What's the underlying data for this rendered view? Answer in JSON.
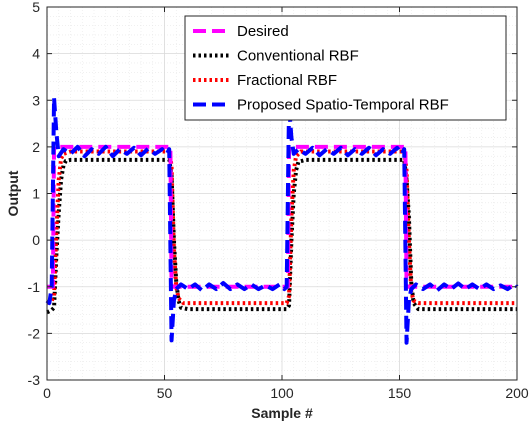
{
  "chart_data": {
    "type": "line",
    "xlabel": "Sample #",
    "ylabel": "Output",
    "xlim": [
      0,
      200
    ],
    "ylim": [
      -3,
      5
    ],
    "xticks": [
      0,
      50,
      100,
      150,
      200
    ],
    "yticks": [
      -3,
      -2,
      -1,
      0,
      1,
      2,
      3,
      4,
      5
    ],
    "grid": "on (major and minor)",
    "legend_position": "top-right",
    "series": [
      {
        "name": "Desired",
        "color": "#ff00ff",
        "style": "dashed",
        "points": [
          [
            0,
            -1.0
          ],
          [
            2.5,
            -1.0
          ],
          [
            3,
            2.0
          ],
          [
            52.5,
            2.0
          ],
          [
            53,
            -1.0
          ],
          [
            102.5,
            -1.0
          ],
          [
            103,
            2.0
          ],
          [
            152.5,
            2.0
          ],
          [
            153,
            -1.0
          ],
          [
            200,
            -1.0
          ]
        ]
      },
      {
        "name": "Conventional RBF",
        "color": "#000000",
        "style": "dotted",
        "points": [
          [
            0,
            -1.55
          ],
          [
            2,
            -1.5
          ],
          [
            3,
            -1.45
          ],
          [
            4,
            -0.3
          ],
          [
            5,
            0.6
          ],
          [
            6,
            1.3
          ],
          [
            7,
            1.6
          ],
          [
            8,
            1.7
          ],
          [
            10,
            1.72
          ],
          [
            52,
            1.72
          ],
          [
            53,
            1.4
          ],
          [
            54,
            0.0
          ],
          [
            55,
            -0.9
          ],
          [
            56,
            -1.3
          ],
          [
            57,
            -1.45
          ],
          [
            60,
            -1.48
          ],
          [
            102,
            -1.48
          ],
          [
            103,
            -1.4
          ],
          [
            104,
            0.0
          ],
          [
            105,
            1.0
          ],
          [
            106,
            1.5
          ],
          [
            107,
            1.68
          ],
          [
            110,
            1.72
          ],
          [
            152,
            1.72
          ],
          [
            153,
            1.3
          ],
          [
            154,
            0.5
          ],
          [
            155,
            -0.9
          ],
          [
            156,
            -1.35
          ],
          [
            158,
            -1.48
          ],
          [
            200,
            -1.48
          ]
        ]
      },
      {
        "name": "Fractional RBF",
        "color": "#ff0000",
        "style": "dotted",
        "points": [
          [
            0,
            -1.35
          ],
          [
            2,
            -1.3
          ],
          [
            3,
            -1.2
          ],
          [
            4,
            0.2
          ],
          [
            5,
            1.3
          ],
          [
            6,
            1.75
          ],
          [
            7,
            1.85
          ],
          [
            10,
            1.9
          ],
          [
            52,
            1.9
          ],
          [
            53,
            1.6
          ],
          [
            54,
            -0.2
          ],
          [
            55,
            -1.0
          ],
          [
            56,
            -1.25
          ],
          [
            58,
            -1.35
          ],
          [
            102,
            -1.35
          ],
          [
            103,
            -1.2
          ],
          [
            104,
            0.5
          ],
          [
            105,
            1.5
          ],
          [
            106,
            1.8
          ],
          [
            108,
            1.9
          ],
          [
            152,
            1.9
          ],
          [
            153,
            1.5
          ],
          [
            154,
            0.0
          ],
          [
            155,
            -1.1
          ],
          [
            156,
            -1.3
          ],
          [
            158,
            -1.35
          ],
          [
            200,
            -1.35
          ]
        ]
      },
      {
        "name": "Proposed Spatio-Temporal RBF",
        "color": "#0000ff",
        "style": "dashed",
        "points": [
          [
            0,
            -1.3
          ],
          [
            1,
            -1.35
          ],
          [
            2,
            -1.0
          ],
          [
            3,
            3.05
          ],
          [
            4,
            2.3
          ],
          [
            5,
            1.8
          ],
          [
            7,
            1.95
          ],
          [
            10,
            1.85
          ],
          [
            13,
            2.0
          ],
          [
            16,
            1.8
          ],
          [
            19,
            1.95
          ],
          [
            22,
            1.85
          ],
          [
            25,
            2.0
          ],
          [
            28,
            1.8
          ],
          [
            31,
            1.95
          ],
          [
            34,
            1.85
          ],
          [
            37,
            1.98
          ],
          [
            40,
            1.82
          ],
          [
            43,
            1.96
          ],
          [
            46,
            1.85
          ],
          [
            49,
            1.95
          ],
          [
            51,
            1.85
          ],
          [
            52,
            1.95
          ],
          [
            53,
            -2.15
          ],
          [
            54,
            -1.3
          ],
          [
            55,
            -1.05
          ],
          [
            57,
            -0.95
          ],
          [
            60,
            -1.05
          ],
          [
            63,
            -0.95
          ],
          [
            66,
            -1.08
          ],
          [
            69,
            -0.95
          ],
          [
            72,
            -1.05
          ],
          [
            75,
            -0.92
          ],
          [
            78,
            -1.05
          ],
          [
            81,
            -0.95
          ],
          [
            84,
            -1.05
          ],
          [
            87,
            -0.95
          ],
          [
            90,
            -1.05
          ],
          [
            93,
            -0.97
          ],
          [
            96,
            -1.05
          ],
          [
            99,
            -0.95
          ],
          [
            101,
            -1.05
          ],
          [
            102,
            -1.0
          ],
          [
            103,
            2.9
          ],
          [
            104,
            2.2
          ],
          [
            105,
            1.85
          ],
          [
            107,
            1.95
          ],
          [
            110,
            1.85
          ],
          [
            113,
            1.98
          ],
          [
            116,
            1.82
          ],
          [
            119,
            1.95
          ],
          [
            122,
            1.85
          ],
          [
            125,
            1.98
          ],
          [
            128,
            1.82
          ],
          [
            131,
            1.95
          ],
          [
            134,
            1.85
          ],
          [
            137,
            1.98
          ],
          [
            140,
            1.82
          ],
          [
            143,
            1.95
          ],
          [
            146,
            1.85
          ],
          [
            149,
            1.98
          ],
          [
            151,
            1.85
          ],
          [
            152,
            1.95
          ],
          [
            153,
            -2.2
          ],
          [
            154,
            -1.3
          ],
          [
            155,
            -1.05
          ],
          [
            157,
            -0.95
          ],
          [
            160,
            -1.05
          ],
          [
            163,
            -0.95
          ],
          [
            166,
            -1.08
          ],
          [
            169,
            -0.95
          ],
          [
            172,
            -1.05
          ],
          [
            175,
            -0.93
          ],
          [
            178,
            -1.05
          ],
          [
            181,
            -0.95
          ],
          [
            184,
            -1.05
          ],
          [
            187,
            -0.95
          ],
          [
            190,
            -1.05
          ],
          [
            193,
            -0.97
          ],
          [
            196,
            -1.05
          ],
          [
            199,
            -0.95
          ],
          [
            200,
            -1.0
          ]
        ]
      }
    ]
  }
}
